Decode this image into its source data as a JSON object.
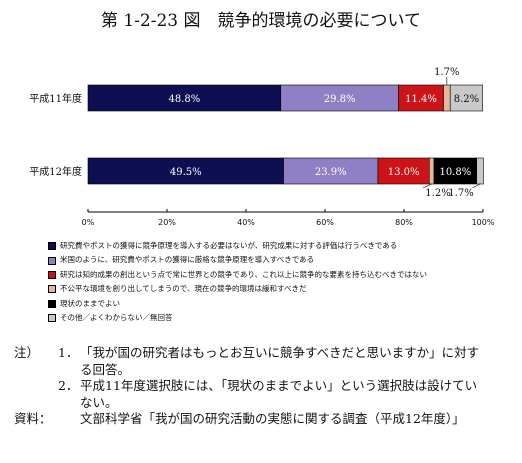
{
  "title": "第 1-2-23 図　競争的環境の必要について",
  "chart_data": {
    "type": "bar",
    "orientation": "horizontal",
    "stacked": true,
    "categories": [
      "平成11年度",
      "平成12年度"
    ],
    "xlim": [
      0,
      100
    ],
    "x_ticks": [
      "0%",
      "20%",
      "40%",
      "60%",
      "80%",
      "100%"
    ],
    "grid": false,
    "legend_position": "bottom",
    "series": [
      {
        "name": "研究費やポストの獲得に競争原理を導入する必要はないが、研究成果に対する評価は行うべきである",
        "color": "#0e0e52",
        "values": [
          48.8,
          49.5
        ],
        "labels": [
          "48.8%",
          "49.5%"
        ]
      },
      {
        "name": "米国のように、研究費やポストの獲得に厳格な競争原理を導入すべきである",
        "color": "#8f7fc4",
        "values": [
          29.8,
          23.9
        ],
        "labels": [
          "29.8%",
          "23.9%"
        ]
      },
      {
        "name": "研究は知的成果の創出という点で常に世界との競争であり、これ以上に競争的な要素を持ち込むべきではない",
        "color": "#cc1418",
        "values": [
          11.4,
          13.0
        ],
        "labels": [
          "11.4%",
          "13.0%"
        ]
      },
      {
        "name": "不公平な環境を創り出してしまうので、現在の競争的環境は緩和すべきだ",
        "color": "#e5b89a",
        "values": [
          1.7,
          1.2
        ],
        "labels": [
          "1.7%",
          "1.2%"
        ]
      },
      {
        "name": "現状のままでよい",
        "color": "#000000",
        "values": [
          0,
          10.8
        ],
        "labels": [
          "",
          "10.8%"
        ]
      },
      {
        "name": "その他／よくわからない／無回答",
        "color": "#c9c9c9",
        "values": [
          8.2,
          1.7
        ],
        "labels": [
          "8.2%",
          "1.7%"
        ]
      }
    ]
  },
  "notes": {
    "label": "注）",
    "items": [
      {
        "num": "1．",
        "text": "「我が国の研究者はもっとお互いに競争すべきだと思いますか」に対する回答。"
      },
      {
        "num": "2．",
        "text": "平成11年度選択肢には、「現状のままでよい」という選択肢は設けていない。"
      }
    ],
    "source_label": "資料：",
    "source_text": "文部科学省「我が国の研究活動の実態に関する調査（平成12年度）」"
  }
}
